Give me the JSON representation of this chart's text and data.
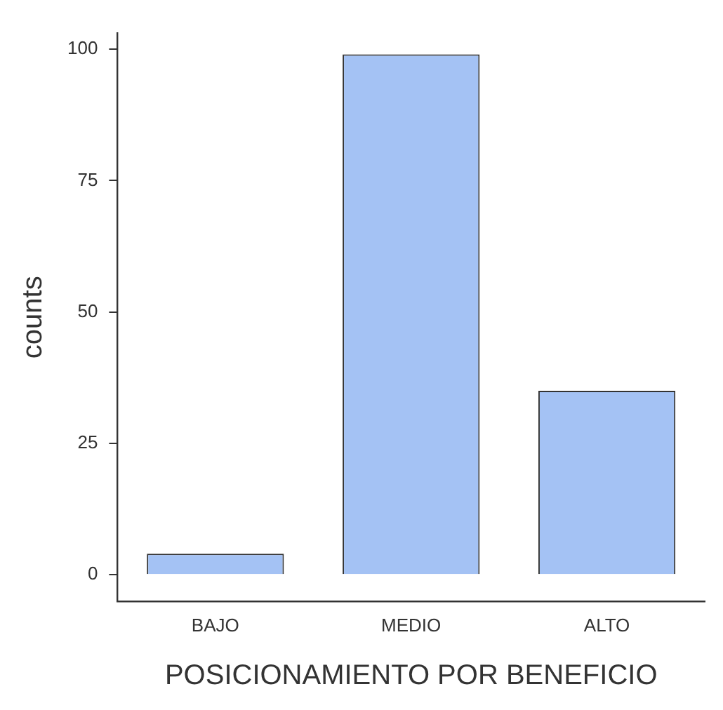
{
  "chart_data": {
    "type": "bar",
    "xlabel": "POSICIONAMIENTO POR BENEFICIO",
    "ylabel": "counts",
    "categories": [
      "BAJO",
      "MEDIO",
      "ALTO"
    ],
    "values": [
      4,
      99,
      35
    ],
    "color": "#a4c2f4",
    "ylim": [
      -5,
      103
    ],
    "yticks": [
      0,
      25,
      50,
      75,
      100
    ],
    "grid": false,
    "legend": false
  }
}
